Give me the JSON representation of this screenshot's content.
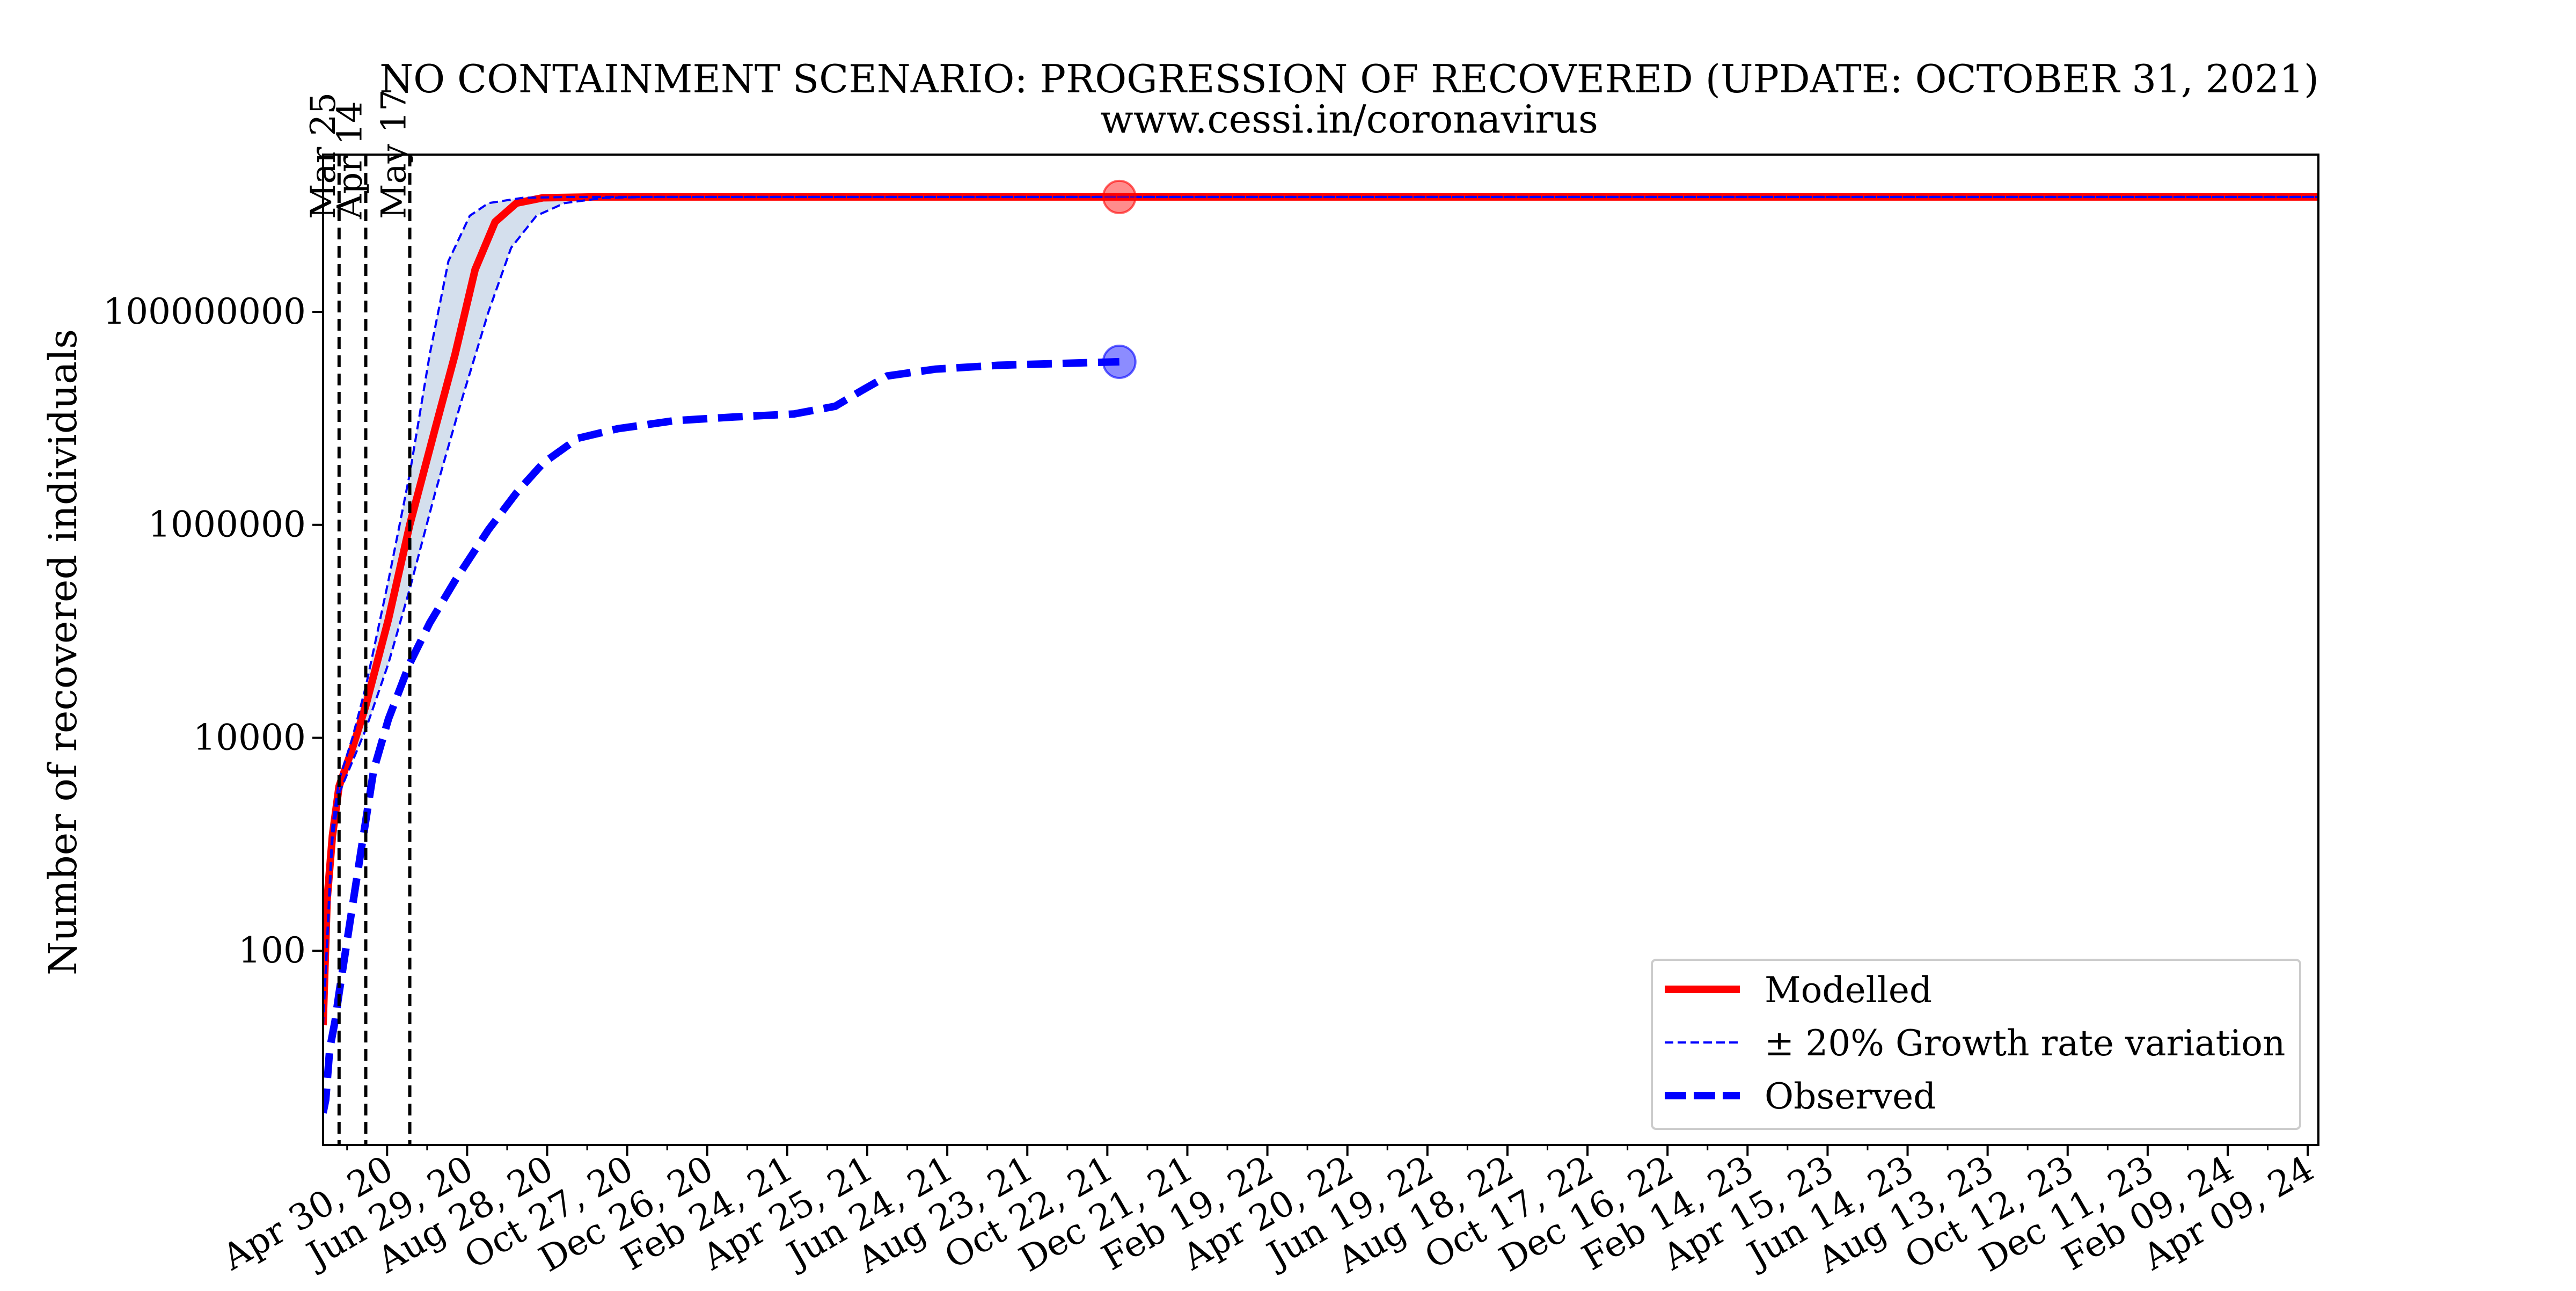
{
  "chart_data": {
    "type": "line",
    "title": "NO CONTAINMENT SCENARIO: PROGRESSION OF RECOVERED (UPDATE: OCTOBER 31, 2021)",
    "subtitle": "www.cessi.in/coronavirus",
    "xlabel": "",
    "ylabel": "Number of recovered individuals",
    "yscale": "log",
    "ylim": [
      1.5,
      3000000000
    ],
    "xlim": [
      "2020-03-13",
      "2024-04-17"
    ],
    "y_ticks": [
      {
        "value": 100,
        "label": "100"
      },
      {
        "value": 10000,
        "label": "10000"
      },
      {
        "value": 1000000,
        "label": "1000000"
      },
      {
        "value": 100000000,
        "label": "100000000"
      }
    ],
    "x_ticks": [
      {
        "date": "2020-04-30",
        "label": "Apr 30, 20"
      },
      {
        "date": "2020-06-29",
        "label": "Jun 29, 20"
      },
      {
        "date": "2020-08-28",
        "label": "Aug 28, 20"
      },
      {
        "date": "2020-10-27",
        "label": "Oct 27, 20"
      },
      {
        "date": "2020-12-26",
        "label": "Dec 26, 20"
      },
      {
        "date": "2021-02-24",
        "label": "Feb 24, 21"
      },
      {
        "date": "2021-04-25",
        "label": "Apr 25, 21"
      },
      {
        "date": "2021-06-24",
        "label": "Jun 24, 21"
      },
      {
        "date": "2021-08-23",
        "label": "Aug 23, 21"
      },
      {
        "date": "2021-10-22",
        "label": "Oct 22, 21"
      },
      {
        "date": "2021-12-21",
        "label": "Dec 21, 21"
      },
      {
        "date": "2022-02-19",
        "label": "Feb 19, 22"
      },
      {
        "date": "2022-04-20",
        "label": "Apr 20, 22"
      },
      {
        "date": "2022-06-19",
        "label": "Jun 19, 22"
      },
      {
        "date": "2022-08-18",
        "label": "Aug 18, 22"
      },
      {
        "date": "2022-10-17",
        "label": "Oct 17, 22"
      },
      {
        "date": "2022-12-16",
        "label": "Dec 16, 22"
      },
      {
        "date": "2023-02-14",
        "label": "Feb 14, 23"
      },
      {
        "date": "2023-04-15",
        "label": "Apr 15, 23"
      },
      {
        "date": "2023-06-14",
        "label": "Jun 14, 23"
      },
      {
        "date": "2023-08-13",
        "label": "Aug 13, 23"
      },
      {
        "date": "2023-10-12",
        "label": "Oct 12, 23"
      },
      {
        "date": "2023-12-11",
        "label": "Dec 11, 23"
      },
      {
        "date": "2024-02-09",
        "label": "Feb 09, 24"
      },
      {
        "date": "2024-04-09",
        "label": "Apr 09, 24"
      }
    ],
    "vertical_lines": [
      {
        "date": "2020-03-25",
        "label": "Mar 25"
      },
      {
        "date": "2020-04-14",
        "label": "Apr 14"
      },
      {
        "date": "2020-05-17",
        "label": "May 17"
      }
    ],
    "series": [
      {
        "name": "Modelled",
        "color": "#ff0000",
        "style": "solid",
        "points": [
          [
            "2020-03-13",
            20
          ],
          [
            "2020-03-16",
            300
          ],
          [
            "2020-03-20",
            1200
          ],
          [
            "2020-03-25",
            3500
          ],
          [
            "2020-04-04",
            8000
          ],
          [
            "2020-04-14",
            20000
          ],
          [
            "2020-05-01",
            130000
          ],
          [
            "2020-05-17",
            1000000
          ],
          [
            "2020-06-05",
            8000000
          ],
          [
            "2020-06-20",
            40000000
          ],
          [
            "2020-07-05",
            250000000
          ],
          [
            "2020-07-20",
            700000000
          ],
          [
            "2020-08-05",
            1050000000
          ],
          [
            "2020-08-25",
            1180000000
          ],
          [
            "2020-10-01",
            1200000000
          ],
          [
            "2021-10-31",
            1200000000
          ],
          [
            "2024-04-17",
            1200000000
          ]
        ],
        "end_marker": {
          "date": "2021-10-31",
          "value": 1200000000
        }
      },
      {
        "name": "± 20% Growth rate variation",
        "color": "#0000ff",
        "style": "dashed-thin",
        "points_upper": [
          [
            "2020-03-13",
            20
          ],
          [
            "2020-03-20",
            1500
          ],
          [
            "2020-03-25",
            4000
          ],
          [
            "2020-04-04",
            10000
          ],
          [
            "2020-04-14",
            30000
          ],
          [
            "2020-05-01",
            300000
          ],
          [
            "2020-05-17",
            3000000
          ],
          [
            "2020-06-01",
            40000000
          ],
          [
            "2020-06-15",
            300000000
          ],
          [
            "2020-07-01",
            800000000
          ],
          [
            "2020-07-15",
            1050000000
          ],
          [
            "2020-08-10",
            1180000000
          ],
          [
            "2020-09-15",
            1200000000
          ],
          [
            "2024-04-17",
            1200000000
          ]
        ],
        "points_lower": [
          [
            "2020-03-13",
            20
          ],
          [
            "2020-03-20",
            1100
          ],
          [
            "2020-03-25",
            3000
          ],
          [
            "2020-04-04",
            6000
          ],
          [
            "2020-04-14",
            12000
          ],
          [
            "2020-05-01",
            50000
          ],
          [
            "2020-05-17",
            250000
          ],
          [
            "2020-06-05",
            2000000
          ],
          [
            "2020-06-25",
            15000000
          ],
          [
            "2020-07-15",
            100000000
          ],
          [
            "2020-08-01",
            400000000
          ],
          [
            "2020-08-20",
            800000000
          ],
          [
            "2020-09-10",
            1050000000
          ],
          [
            "2020-10-10",
            1180000000
          ],
          [
            "2020-11-15",
            1200000000
          ],
          [
            "2024-04-17",
            1200000000
          ]
        ]
      },
      {
        "name": "Observed",
        "color": "#0000ff",
        "style": "dashed-thick",
        "points": [
          [
            "2020-03-13",
            3
          ],
          [
            "2020-03-15",
            4
          ],
          [
            "2020-03-18",
            12
          ],
          [
            "2020-03-22",
            22
          ],
          [
            "2020-03-25",
            40
          ],
          [
            "2020-04-02",
            180
          ],
          [
            "2020-04-10",
            800
          ],
          [
            "2020-04-20",
            5000
          ],
          [
            "2020-05-01",
            15000
          ],
          [
            "2020-05-17",
            50000
          ],
          [
            "2020-06-01",
            120000
          ],
          [
            "2020-06-20",
            300000
          ],
          [
            "2020-07-15",
            900000
          ],
          [
            "2020-08-05",
            2000000
          ],
          [
            "2020-08-25",
            3800000
          ],
          [
            "2020-09-20",
            6500000
          ],
          [
            "2020-10-20",
            8000000
          ],
          [
            "2020-12-01",
            9500000
          ],
          [
            "2021-01-15",
            10300000
          ],
          [
            "2021-03-01",
            11000000
          ],
          [
            "2021-04-01",
            13000000
          ],
          [
            "2021-04-20",
            18000000
          ],
          [
            "2021-05-10",
            25000000
          ],
          [
            "2021-06-15",
            29000000
          ],
          [
            "2021-08-01",
            31500000
          ],
          [
            "2021-10-31",
            34000000
          ]
        ],
        "end_marker": {
          "date": "2021-10-31",
          "value": 34000000
        }
      }
    ],
    "legend_placement": "lower-right",
    "grid": false
  }
}
